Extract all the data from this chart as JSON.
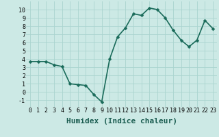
{
  "x": [
    0,
    1,
    2,
    3,
    4,
    5,
    6,
    7,
    8,
    9,
    10,
    11,
    12,
    13,
    14,
    15,
    16,
    17,
    18,
    19,
    20,
    21,
    22,
    23
  ],
  "y": [
    3.7,
    3.7,
    3.7,
    3.3,
    3.1,
    1.0,
    0.9,
    0.8,
    -0.3,
    -1.2,
    4.0,
    6.7,
    7.8,
    9.5,
    9.3,
    10.2,
    10.0,
    9.0,
    7.5,
    6.3,
    5.5,
    6.3,
    8.7,
    7.7
  ],
  "xlabel": "Humidex (Indice chaleur)",
  "ylim": [
    -1.8,
    11.0
  ],
  "xlim": [
    -0.5,
    23.5
  ],
  "yticks": [
    -1,
    0,
    1,
    2,
    3,
    4,
    5,
    6,
    7,
    8,
    9,
    10
  ],
  "xticks": [
    0,
    1,
    2,
    3,
    4,
    5,
    6,
    7,
    8,
    9,
    10,
    11,
    12,
    13,
    14,
    15,
    16,
    17,
    18,
    19,
    20,
    21,
    22,
    23
  ],
  "line_color": "#1a6b5a",
  "marker_color": "#1a6b5a",
  "bg_color": "#cce9e5",
  "grid_color": "#aad4cf",
  "xlabel_fontsize": 8,
  "tick_fontsize": 6,
  "line_width": 1.2,
  "marker_size": 2.5
}
